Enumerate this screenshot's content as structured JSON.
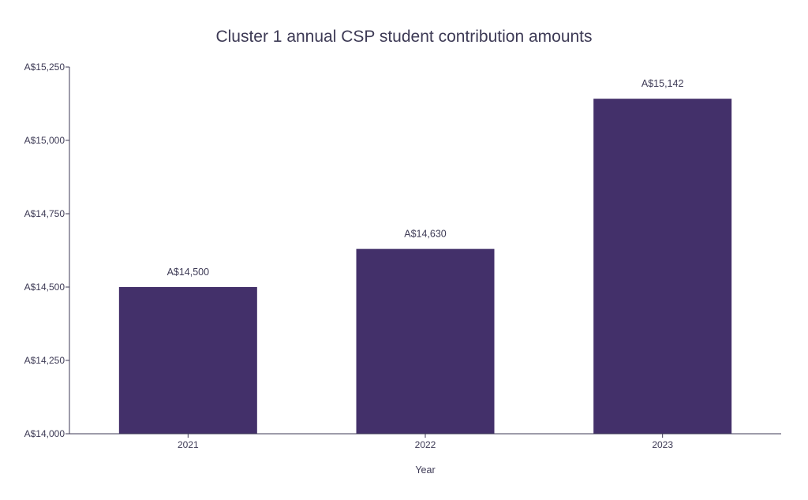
{
  "chart_data": {
    "type": "bar",
    "title": "Cluster 1 annual CSP student contribution amounts",
    "xlabel": "Year",
    "ylabel": "",
    "categories": [
      "2021",
      "2022",
      "2023"
    ],
    "values": [
      14500,
      14630,
      15142
    ],
    "data_labels": [
      "A$14,500",
      "A$14,630",
      "A$15,142"
    ],
    "ylim": [
      14000,
      15250
    ],
    "yticks": [
      14000,
      14250,
      14500,
      14750,
      15000,
      15250
    ],
    "ytick_labels": [
      "A$14,000",
      "A$14,250",
      "A$14,500",
      "A$14,750",
      "A$15,000",
      "A$15,250"
    ],
    "bar_color": "#43306a",
    "text_color": "#3d3a55",
    "grid": false,
    "legend": "none"
  }
}
